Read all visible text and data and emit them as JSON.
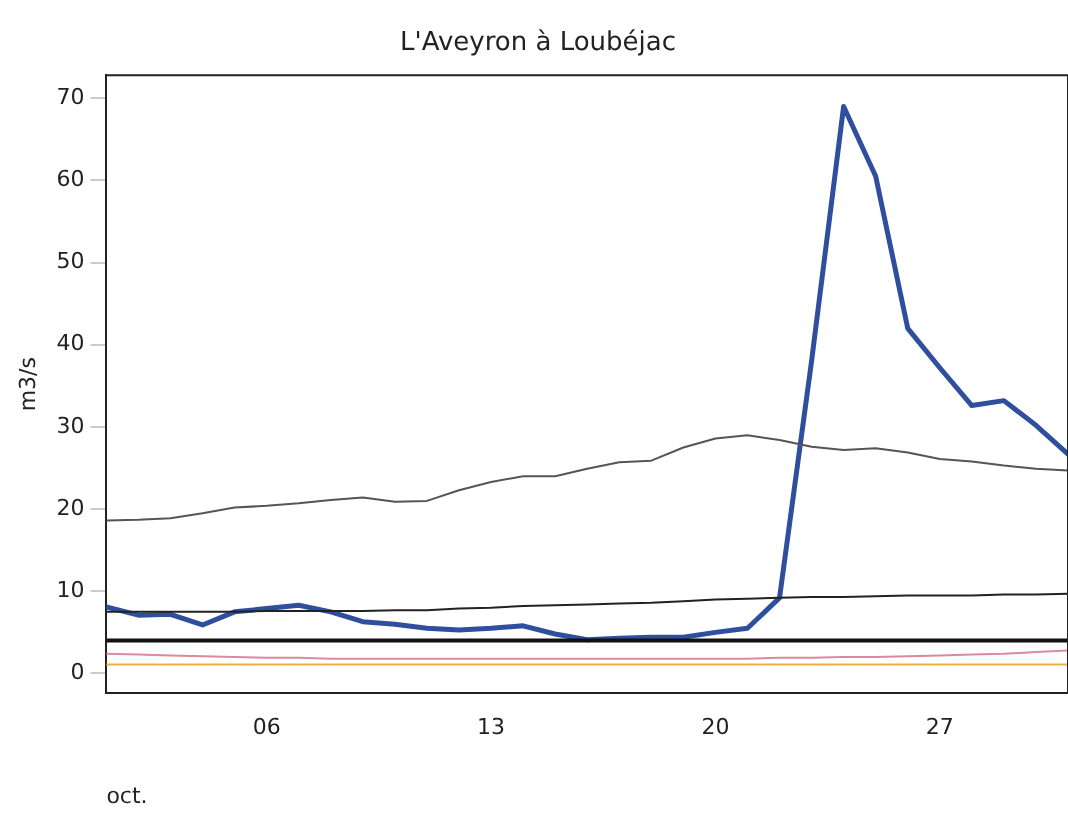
{
  "chart_data": {
    "type": "line",
    "title": "L'Aveyron à Loubéjac",
    "ylabel": "m3/s",
    "xlabel": "oct.",
    "x": [
      "--10-01",
      "--10-02",
      "--10-03",
      "--10-04",
      "--10-05",
      "--10-06",
      "--10-07",
      "--10-08",
      "--10-09",
      "--10-10",
      "--10-11",
      "--10-12",
      "--10-13",
      "--10-14",
      "--10-15",
      "--10-16",
      "--10-17",
      "--10-18",
      "--10-19",
      "--10-20",
      "--10-21",
      "--10-22",
      "--10-23",
      "--10-24",
      "--10-25",
      "--10-26",
      "--10-27",
      "--10-28",
      "--10-29",
      "--10-30",
      "--10-31"
    ],
    "series": [
      {
        "color": "#2f4f9e",
        "values": [
          8.1,
          7.1,
          7.2,
          5.9,
          7.5,
          7.9,
          8.3,
          7.5,
          6.3,
          6.0,
          5.5,
          5.3,
          5.5,
          5.8,
          4.8,
          4.1,
          4.3,
          4.4,
          4.4,
          5.0,
          5.5,
          9.2,
          38,
          69,
          60.5,
          42,
          37.2,
          32.6,
          33.2,
          30.2,
          26.7
        ]
      },
      {
        "color": "#555555",
        "values": [
          18.6,
          18.7,
          18.9,
          19.5,
          20.2,
          20.4,
          20.7,
          21.1,
          21.4,
          20.9,
          21.0,
          22.3,
          23.3,
          24.0,
          24.0,
          24.9,
          25.7,
          25.9,
          27.5,
          28.6,
          29.0,
          28.4,
          27.6,
          27.2,
          27.4,
          26.9,
          26.1,
          25.8,
          25.3,
          24.9,
          24.7
        ]
      },
      {
        "color": "#222222",
        "values": [
          7.5,
          7.5,
          7.5,
          7.5,
          7.5,
          7.6,
          7.6,
          7.6,
          7.6,
          7.7,
          7.7,
          7.9,
          8.0,
          8.2,
          8.3,
          8.4,
          8.5,
          8.6,
          8.8,
          9.0,
          9.1,
          9.2,
          9.3,
          9.3,
          9.4,
          9.5,
          9.5,
          9.5,
          9.6,
          9.6,
          9.7
        ]
      },
      {
        "color": "#111111",
        "values": [
          4.0,
          4.0,
          4.0,
          4.0,
          4.0,
          4.0,
          4.0,
          4.0,
          4.0,
          4.0,
          4.0,
          4.0,
          4.0,
          4.0,
          4.0,
          4.0,
          4.0,
          4.0,
          4.0,
          4.0,
          4.0,
          4.0,
          4.0,
          4.0,
          4.0,
          4.0,
          4.0,
          4.0,
          4.0,
          4.0,
          4.0
        ]
      },
      {
        "color": "#d98aa0",
        "values": [
          2.4,
          2.3,
          2.2,
          2.1,
          2.0,
          1.9,
          1.9,
          1.8,
          1.8,
          1.8,
          1.8,
          1.8,
          1.8,
          1.8,
          1.8,
          1.8,
          1.8,
          1.8,
          1.8,
          1.8,
          1.8,
          1.9,
          1.9,
          2.0,
          2.0,
          2.1,
          2.2,
          2.3,
          2.4,
          2.6,
          2.8
        ]
      },
      {
        "color": "#f0b040",
        "values": [
          1.1,
          1.1,
          1.1,
          1.1,
          1.1,
          1.1,
          1.1,
          1.1,
          1.1,
          1.1,
          1.1,
          1.1,
          1.1,
          1.1,
          1.1,
          1.1,
          1.1,
          1.1,
          1.1,
          1.1,
          1.1,
          1.1,
          1.1,
          1.1,
          1.1,
          1.1,
          1.1,
          1.1,
          1.1,
          1.1,
          1.1
        ]
      }
    ],
    "xlim": [
      "--10-01",
      "--10-31"
    ],
    "xticks": [
      {
        "value": "--10-06",
        "label": "06"
      },
      {
        "value": "--10-13",
        "label": "13"
      },
      {
        "value": "--10-20",
        "label": "20"
      },
      {
        "value": "--10-27",
        "label": "27"
      }
    ],
    "ylim": [
      -2.4,
      72.8
    ],
    "yticks": [
      0,
      10,
      20,
      30,
      40,
      50,
      60,
      70
    ],
    "grid": false,
    "legend": false,
    "marker": "none",
    "line_style": "solid"
  }
}
